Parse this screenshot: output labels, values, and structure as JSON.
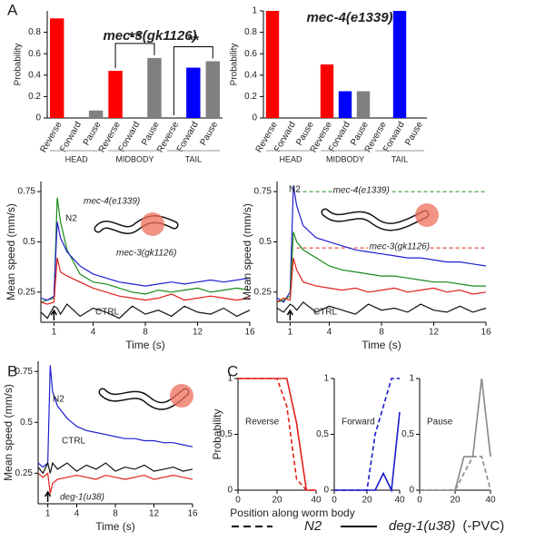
{
  "panels": [
    "A",
    "B",
    "C"
  ],
  "chart_data": [
    {
      "type": "bar",
      "title": "mec-3(gk1126)",
      "ylabel": "Probability",
      "categories": [
        "Reverse",
        "Forward",
        "Pause",
        "Reverse",
        "Forward",
        "Pause",
        "Reverse",
        "Forward",
        "Pause"
      ],
      "groups": [
        "HEAD",
        "MIDBODY",
        "TAIL"
      ],
      "values": [
        0.93,
        0,
        0.07,
        0.44,
        0,
        0.56,
        0,
        0.47,
        0.53
      ],
      "colors": [
        "#ff0000",
        "#0000ff",
        "#808080",
        "#ff0000",
        "#0000ff",
        "#808080",
        "#ff0000",
        "#0000ff",
        "#808080"
      ],
      "ylim": [
        0,
        1
      ],
      "yticks": [
        0,
        0.2,
        0.4,
        0.6,
        0.8
      ],
      "significance": [
        {
          "group": 1,
          "label": "**"
        },
        {
          "group": 2,
          "label": "**"
        }
      ]
    },
    {
      "type": "bar",
      "title": "mec-4(e1339)",
      "ylabel": "Probability",
      "categories": [
        "Reverse",
        "Forward",
        "Pause",
        "Reverse",
        "Forward",
        "Pause",
        "Reverse",
        "Forward",
        "Pause"
      ],
      "groups": [
        "HEAD",
        "MIDBODY",
        "TAIL"
      ],
      "values": [
        1,
        0,
        0,
        0.5,
        0.25,
        0.25,
        0,
        1,
        0
      ],
      "colors": [
        "#ff0000",
        "#0000ff",
        "#808080",
        "#ff0000",
        "#0000ff",
        "#808080",
        "#ff0000",
        "#0000ff",
        "#808080"
      ],
      "ylim": [
        0,
        1
      ],
      "yticks": [
        0,
        0.2,
        0.4,
        0.6,
        0.8,
        1
      ]
    },
    {
      "type": "line",
      "xlabel": "Time (s)",
      "ylabel": "Mean speed (mm/s)",
      "x": [
        0,
        0.5,
        1,
        1.25,
        1.5,
        2,
        3,
        4,
        5,
        6,
        7,
        8,
        9,
        10,
        11,
        12,
        13,
        14,
        15,
        16
      ],
      "xlim": [
        0,
        16
      ],
      "xticks": [
        1,
        4,
        8,
        12,
        16
      ],
      "ylim": [
        0.1,
        0.8
      ],
      "yticks": [
        0.25,
        0.5,
        0.75
      ],
      "stimulus": 1,
      "series": [
        {
          "name": "mec-4(e1339)",
          "color": "#1a8a1a",
          "values": [
            0.2,
            0.21,
            0.22,
            0.72,
            0.6,
            0.46,
            0.34,
            0.3,
            0.29,
            0.27,
            0.25,
            0.24,
            0.26,
            0.25,
            0.26,
            0.27,
            0.25,
            0.26,
            0.27,
            0.26
          ]
        },
        {
          "name": "N2",
          "color": "#1f1fd0",
          "values": [
            0.22,
            0.21,
            0.23,
            0.6,
            0.52,
            0.45,
            0.38,
            0.34,
            0.32,
            0.3,
            0.29,
            0.28,
            0.29,
            0.3,
            0.29,
            0.3,
            0.31,
            0.3,
            0.31,
            0.32
          ]
        },
        {
          "name": "mec-3(gk1126)",
          "color": "#e0201a",
          "values": [
            0.2,
            0.19,
            0.2,
            0.42,
            0.35,
            0.33,
            0.3,
            0.27,
            0.25,
            0.23,
            0.22,
            0.21,
            0.22,
            0.24,
            0.21,
            0.22,
            0.23,
            0.22,
            0.21,
            0.22
          ]
        },
        {
          "name": "CTRL",
          "color": "#111111",
          "values": [
            0.15,
            0.12,
            0.18,
            0.17,
            0.14,
            0.19,
            0.13,
            0.17,
            0.15,
            0.12,
            0.18,
            0.14,
            0.16,
            0.13,
            0.18,
            0.15,
            0.14,
            0.17,
            0.13,
            0.16
          ]
        }
      ]
    },
    {
      "type": "line",
      "xlabel": "Time (s)",
      "ylabel": "Mean speed (mm/s)",
      "x": [
        0,
        0.5,
        1,
        1.25,
        1.5,
        2,
        3,
        4,
        5,
        6,
        7,
        8,
        9,
        10,
        11,
        12,
        13,
        14,
        15,
        16
      ],
      "xlim": [
        0,
        16
      ],
      "xticks": [
        1,
        4,
        8,
        12,
        16
      ],
      "ylim": [
        0.1,
        0.8
      ],
      "yticks": [
        0.25,
        0.5,
        0.75
      ],
      "stimulus": 1,
      "series": [
        {
          "name": "N2",
          "color": "#1f1fd0",
          "values": [
            0.22,
            0.2,
            0.25,
            0.78,
            0.68,
            0.58,
            0.52,
            0.5,
            0.48,
            0.46,
            0.45,
            0.44,
            0.43,
            0.42,
            0.42,
            0.41,
            0.4,
            0.4,
            0.39,
            0.38
          ]
        },
        {
          "color": "#1a8a1a",
          "values": [
            0.2,
            0.21,
            0.23,
            0.55,
            0.5,
            0.46,
            0.42,
            0.38,
            0.36,
            0.35,
            0.34,
            0.33,
            0.33,
            0.32,
            0.31,
            0.3,
            0.3,
            0.29,
            0.28,
            0.28
          ]
        },
        {
          "color": "#e0201a",
          "values": [
            0.2,
            0.22,
            0.21,
            0.42,
            0.36,
            0.3,
            0.28,
            0.27,
            0.26,
            0.27,
            0.25,
            0.26,
            0.27,
            0.25,
            0.26,
            0.27,
            0.25,
            0.26,
            0.24,
            0.25
          ]
        },
        {
          "name": "CTRL",
          "color": "#111111",
          "values": [
            0.17,
            0.15,
            0.19,
            0.18,
            0.16,
            0.2,
            0.15,
            0.18,
            0.16,
            0.14,
            0.19,
            0.16,
            0.17,
            0.15,
            0.19,
            0.16,
            0.15,
            0.18,
            0.15,
            0.17
          ]
        }
      ],
      "references": [
        {
          "name": "mec-4(e1339)",
          "color": "#1a8a1a",
          "value": 0.75
        },
        {
          "name": "mec-3(gk1126)",
          "color": "#e0201a",
          "value": 0.47
        }
      ]
    },
    {
      "type": "line",
      "xlabel": "Time (s)",
      "ylabel": "Mean speed (mm/s)",
      "x": [
        0,
        0.5,
        1,
        1.25,
        1.5,
        2,
        3,
        4,
        5,
        6,
        7,
        8,
        9,
        10,
        11,
        12,
        13,
        14,
        15,
        16
      ],
      "xlim": [
        0,
        16
      ],
      "xticks": [
        1,
        4,
        8,
        12,
        16
      ],
      "ylim": [
        0.1,
        0.8
      ],
      "yticks": [
        0.25,
        0.5,
        0.75
      ],
      "stimulus": 1,
      "series": [
        {
          "name": "N2",
          "color": "#1f1fd0",
          "values": [
            0.3,
            0.28,
            0.3,
            0.78,
            0.65,
            0.58,
            0.52,
            0.48,
            0.46,
            0.45,
            0.44,
            0.43,
            0.42,
            0.42,
            0.41,
            0.41,
            0.4,
            0.4,
            0.39,
            0.38
          ]
        },
        {
          "name": "CTRL",
          "color": "#111111",
          "values": [
            0.28,
            0.25,
            0.3,
            0.25,
            0.3,
            0.27,
            0.3,
            0.26,
            0.29,
            0.27,
            0.3,
            0.26,
            0.28,
            0.27,
            0.29,
            0.26,
            0.27,
            0.28,
            0.26,
            0.27
          ]
        },
        {
          "name": "deg-1(u38)",
          "color": "#e0201a",
          "values": [
            0.25,
            0.23,
            0.25,
            0.15,
            0.2,
            0.22,
            0.23,
            0.24,
            0.23,
            0.22,
            0.24,
            0.23,
            0.22,
            0.23,
            0.24,
            0.22,
            0.23,
            0.24,
            0.23,
            0.22
          ]
        }
      ]
    },
    {
      "type": "line",
      "title": "Reverse",
      "xlabel": "Position along worm body",
      "ylabel": "Probability",
      "x": [
        0,
        5,
        10,
        15,
        20,
        25,
        30,
        35,
        40
      ],
      "xlim": [
        0,
        40
      ],
      "xticks": [
        0,
        20,
        40
      ],
      "ylim": [
        0,
        1
      ],
      "yticks": [
        0,
        {
          "value": 0.5,
          "label": "0,5"
        },
        1
      ],
      "series": [
        {
          "style": "dashed",
          "color": "#e0201a",
          "values": [
            1,
            1,
            1,
            1,
            1,
            0.75,
            0.1,
            0,
            0
          ]
        },
        {
          "style": "solid",
          "color": "#e0201a",
          "values": [
            1,
            1,
            1,
            1,
            1,
            1,
            0.6,
            0,
            0
          ]
        }
      ]
    },
    {
      "type": "line",
      "title": "Forward",
      "x": [
        0,
        5,
        10,
        15,
        20,
        25,
        30,
        35,
        40
      ],
      "xlim": [
        0,
        40
      ],
      "xticks": [
        0,
        20,
        40
      ],
      "ylim": [
        0,
        1
      ],
      "yticks": [
        0,
        {
          "value": 0.5,
          "label": "0,5"
        },
        1
      ],
      "series": [
        {
          "style": "dashed",
          "color": "#1a1acc",
          "values": [
            0,
            0,
            0,
            0,
            0,
            0.5,
            0.75,
            1,
            1
          ]
        },
        {
          "style": "solid",
          "color": "#1a1acc",
          "values": [
            0,
            0,
            0,
            0,
            0,
            0,
            0.15,
            0,
            0.7
          ]
        }
      ]
    },
    {
      "type": "line",
      "title": "Pause",
      "x": [
        0,
        5,
        10,
        15,
        20,
        25,
        30,
        35,
        40
      ],
      "xlim": [
        0,
        40
      ],
      "xticks": [
        0,
        20,
        40
      ],
      "ylim": [
        0,
        1
      ],
      "yticks": [
        0,
        {
          "value": 0.5,
          "label": "0,5"
        },
        1
      ],
      "series": [
        {
          "style": "dashed",
          "color": "#888888",
          "values": [
            0,
            0,
            0,
            0,
            0,
            0.15,
            0.3,
            0.3,
            0
          ]
        },
        {
          "style": "solid",
          "color": "#888888",
          "values": [
            0,
            0,
            0,
            0,
            0,
            0.3,
            0.3,
            1,
            0.3
          ]
        }
      ]
    }
  ],
  "legend": [
    {
      "label": "N2",
      "style": "dashed"
    },
    {
      "label": "deg-1(u38)",
      "style": "solid",
      "note": "(-PVC)"
    }
  ]
}
